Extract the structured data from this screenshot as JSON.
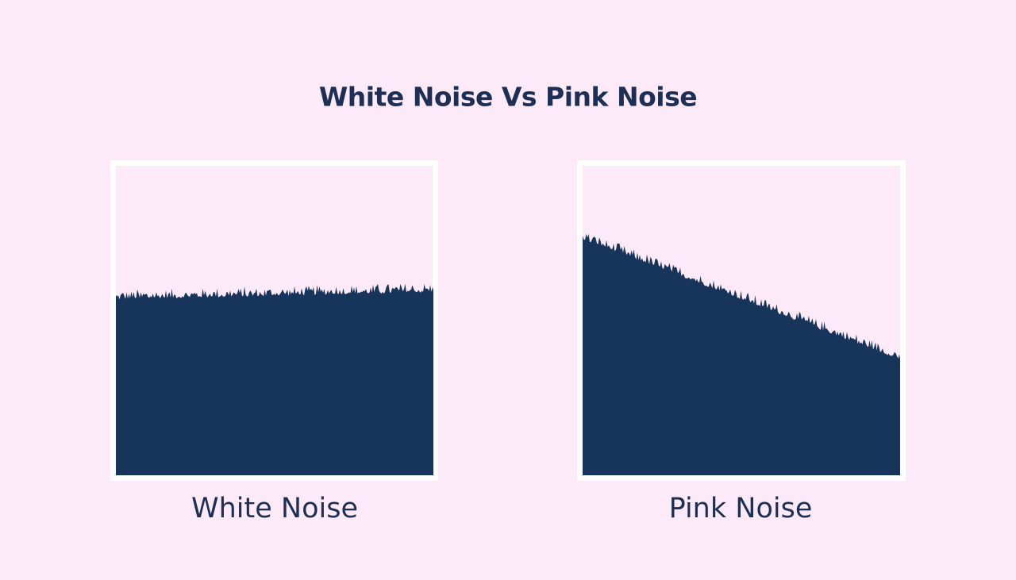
{
  "title": "White Noise Vs Pink Noise",
  "panels": [
    {
      "label": "White Noise"
    },
    {
      "label": "Pink Noise"
    }
  ]
}
